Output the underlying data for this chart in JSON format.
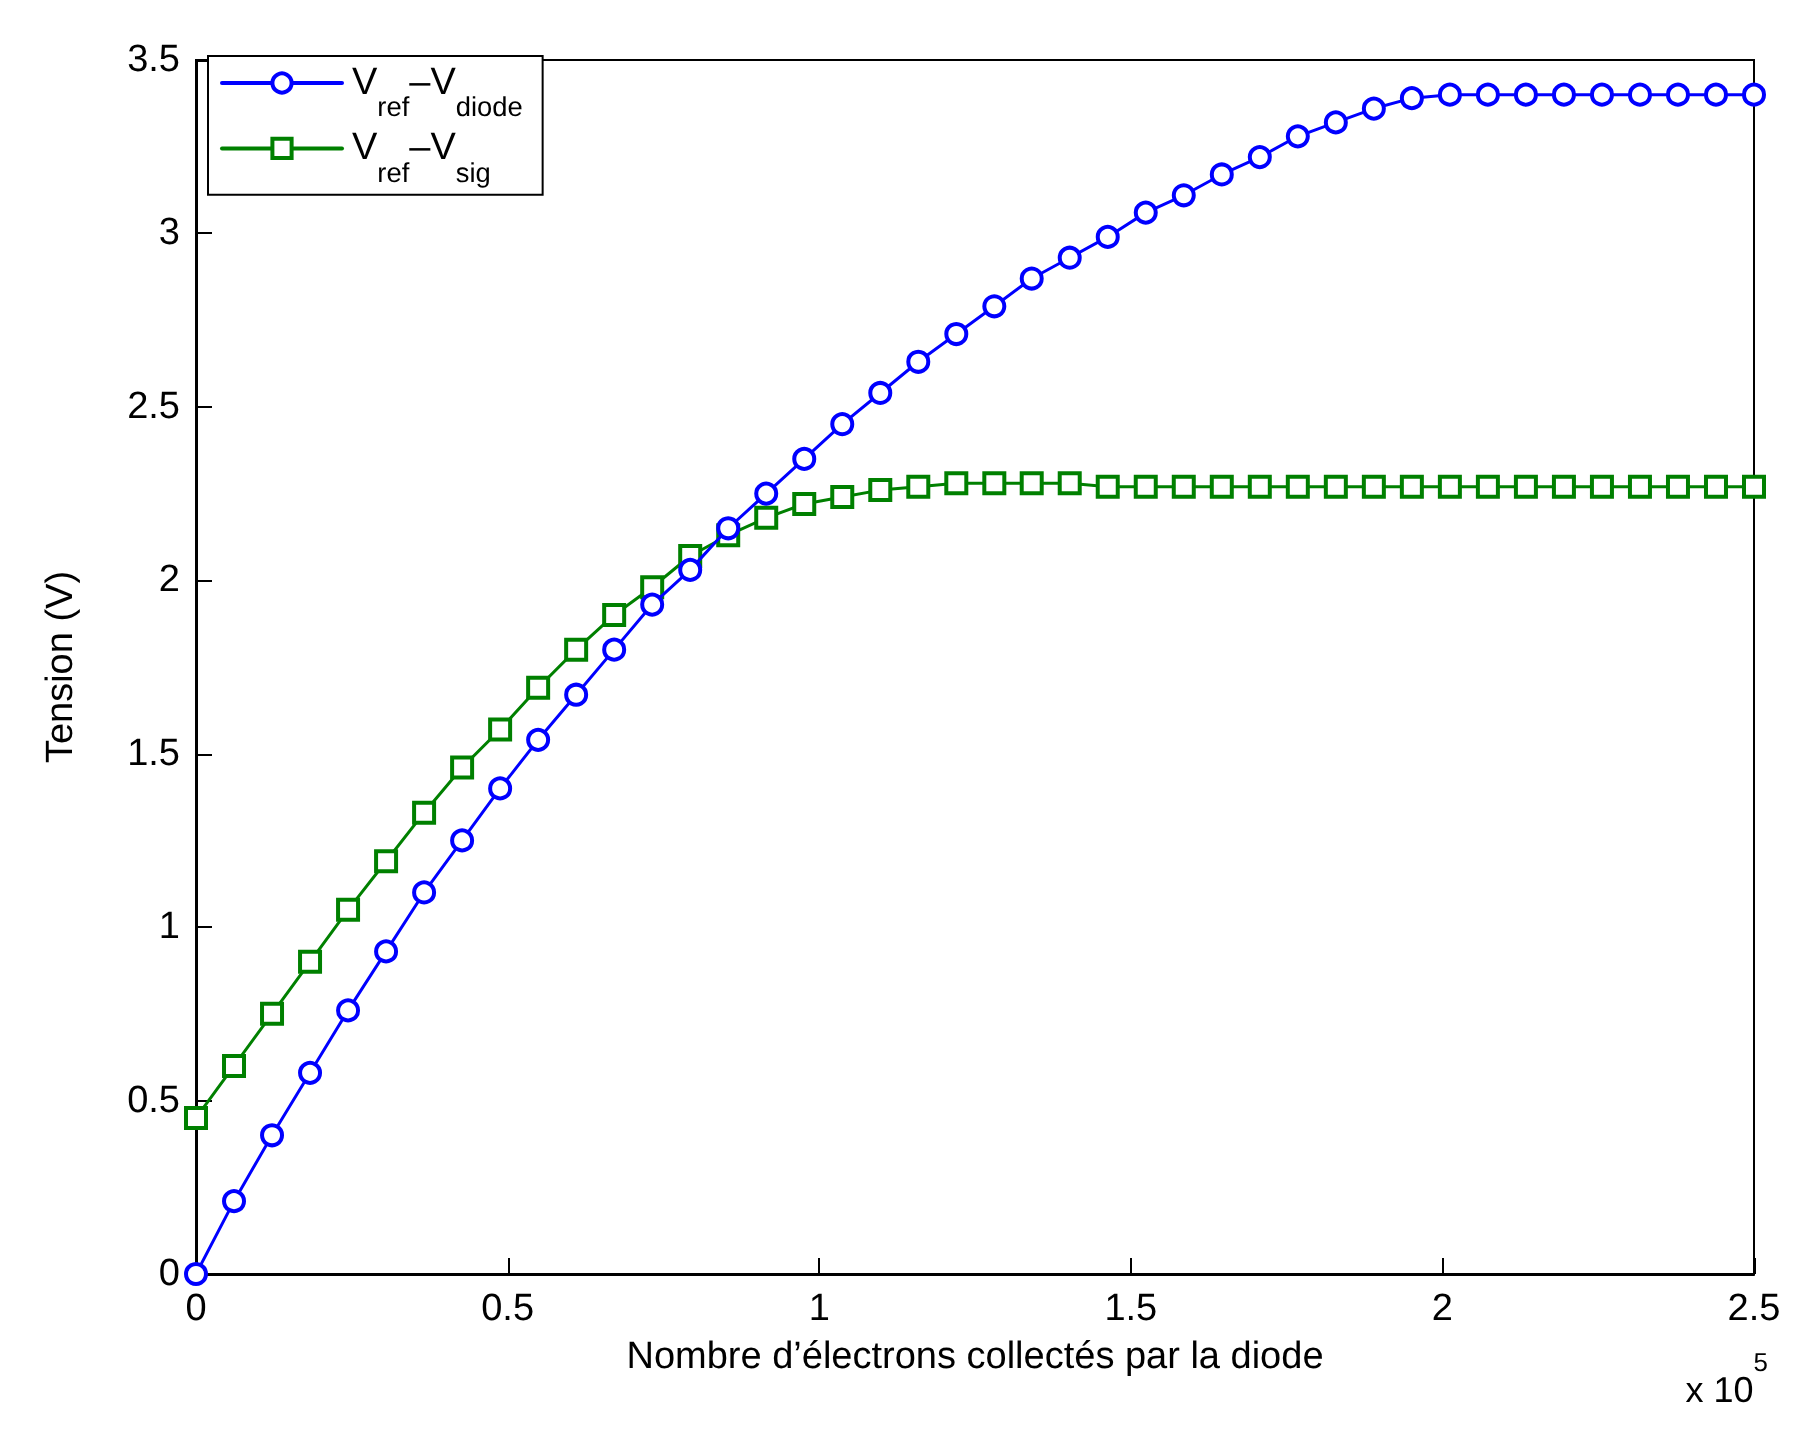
{
  "chart_data": {
    "type": "line",
    "xlabel": "Nombre d’électrons collectés par la diode",
    "ylabel": "Tension (V)",
    "x": [
      0,
      0.061,
      0.122,
      0.183,
      0.244,
      0.305,
      0.366,
      0.427,
      0.488,
      0.549,
      0.61,
      0.671,
      0.732,
      0.793,
      0.854,
      0.915,
      0.976,
      1.037,
      1.098,
      1.159,
      1.22,
      1.281,
      1.341,
      1.402,
      1.463,
      1.524,
      1.585,
      1.646,
      1.707,
      1.768,
      1.829,
      1.89,
      1.951,
      2.012,
      2.073,
      2.134,
      2.195,
      2.256,
      2.317,
      2.378,
      2.439,
      2.5
    ],
    "series": [
      {
        "name": "V$_{ref}$–V$_{diode}$",
        "color": "#0000ff",
        "marker": "circle",
        "values": [
          0,
          0.21,
          0.4,
          0.58,
          0.76,
          0.93,
          1.1,
          1.25,
          1.4,
          1.54,
          1.67,
          1.8,
          1.93,
          2.03,
          2.15,
          2.25,
          2.35,
          2.45,
          2.54,
          2.63,
          2.71,
          2.79,
          2.87,
          2.93,
          2.99,
          3.06,
          3.11,
          3.17,
          3.22,
          3.28,
          3.32,
          3.36,
          3.39,
          3.4,
          3.4,
          3.4,
          3.4,
          3.4,
          3.4,
          3.4,
          3.4,
          3.4
        ]
      },
      {
        "name": "V$_{ref}$–V$_{sig}$",
        "color": "#008000",
        "marker": "square",
        "values": [
          0.45,
          0.6,
          0.75,
          0.9,
          1.05,
          1.19,
          1.33,
          1.46,
          1.57,
          1.69,
          1.8,
          1.9,
          1.98,
          2.07,
          2.13,
          2.18,
          2.22,
          2.24,
          2.26,
          2.27,
          2.28,
          2.28,
          2.28,
          2.28,
          2.27,
          2.27,
          2.27,
          2.27,
          2.27,
          2.27,
          2.27,
          2.27,
          2.27,
          2.27,
          2.27,
          2.27,
          2.27,
          2.27,
          2.27,
          2.27,
          2.27,
          2.27
        ]
      }
    ],
    "xlim": [
      0,
      2.5
    ],
    "xticks": [
      0,
      0.5,
      1,
      1.5,
      2,
      2.5
    ],
    "ylim": [
      0,
      3.5
    ],
    "yticks": [
      0,
      0.5,
      1,
      1.5,
      2,
      2.5,
      3,
      3.5
    ],
    "annotations": [
      "x 10$^{5}$"
    ],
    "grid": false,
    "legend": "top left",
    "line_style": "solid"
  }
}
